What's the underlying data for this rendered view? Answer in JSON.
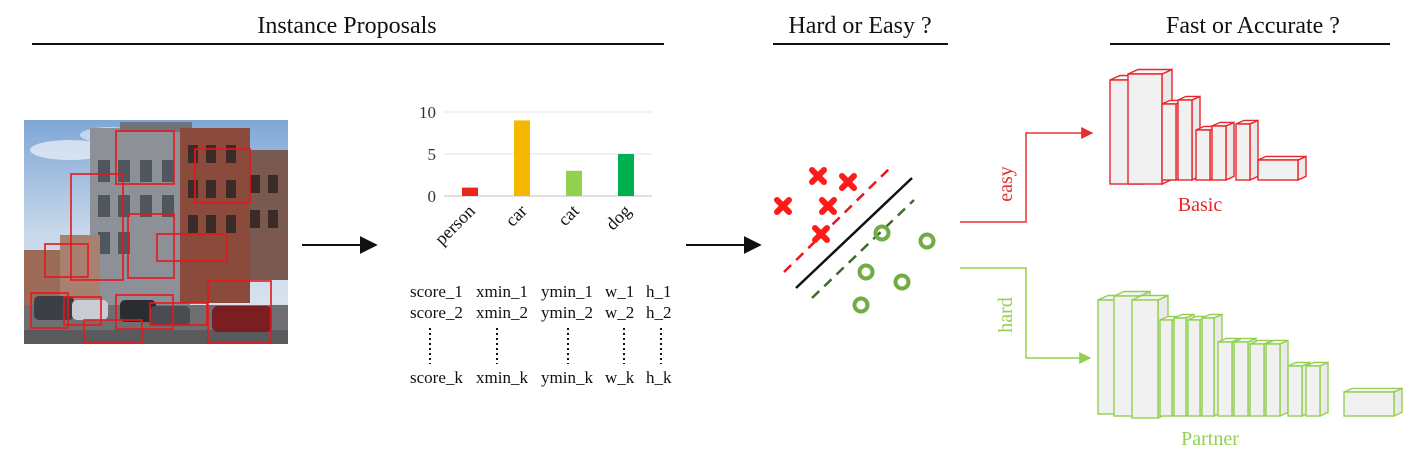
{
  "headers": {
    "instance_proposals": "Instance Proposals",
    "hard_or_easy": "Hard or Easy ?",
    "fast_or_accurate": "Fast or Accurate ?"
  },
  "chart_data": {
    "type": "bar",
    "categories": [
      "person",
      "car",
      "cat",
      "dog"
    ],
    "values": [
      1,
      9,
      3,
      5
    ],
    "colors": [
      "#e8261f",
      "#f5b800",
      "#92d050",
      "#00b050"
    ],
    "yticks": [
      0,
      5,
      10
    ],
    "ylim": [
      0,
      10
    ]
  },
  "proposal_table": {
    "rows": [
      [
        "score_1",
        "xmin_1",
        "ymin_1",
        "w_1",
        "h_1"
      ],
      [
        "score_2",
        "xmin_2",
        "ymin_2",
        "w_2",
        "h_2"
      ],
      [
        "score_k",
        "xmin_k",
        "ymin_k",
        "w_k",
        "h_k"
      ]
    ]
  },
  "classifier": {
    "easy_color": "#ff1a1a",
    "hard_color": "#70ad47",
    "hard_marker": "circle",
    "easy_marker": "cross"
  },
  "branches": {
    "easy_label": "easy",
    "hard_label": "hard",
    "easy_color": "#e53030",
    "hard_color": "#92d050"
  },
  "networks": {
    "basic": {
      "label": "Basic",
      "color": "#e8262b"
    },
    "partner": {
      "label": "Partner",
      "color": "#92d050"
    }
  },
  "photo": {
    "icon": "street-scene-photo"
  }
}
